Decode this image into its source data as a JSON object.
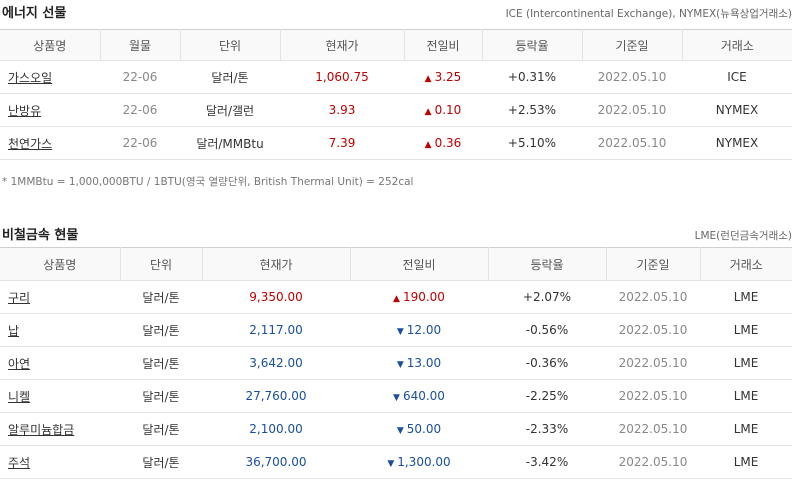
{
  "energy": {
    "title": "에너지 선물",
    "source": "ICE (Intercontinental Exchange), NYMEX(뉴욕상업거래소)",
    "headers": [
      "상품명",
      "월물",
      "단위",
      "현재가",
      "전일비",
      "등락율",
      "기준일",
      "거래소"
    ],
    "rows": [
      {
        "name": "가스오일",
        "month": "22-06",
        "unit": "달러/톤",
        "price": "1,060.75",
        "change": "3.25",
        "dir": "up",
        "arrow": "▲",
        "rate": "+0.31%",
        "date": "2022.05.10",
        "exchange": "ICE"
      },
      {
        "name": "난방유",
        "month": "22-06",
        "unit": "달러/갤런",
        "price": "3.93",
        "change": "0.10",
        "dir": "up",
        "arrow": "▲",
        "rate": "+2.53%",
        "date": "2022.05.10",
        "exchange": "NYMEX"
      },
      {
        "name": "천연가스",
        "month": "22-06",
        "unit": "달러/MMBtu",
        "price": "7.39",
        "change": "0.36",
        "dir": "up",
        "arrow": "▲",
        "rate": "+5.10%",
        "date": "2022.05.10",
        "exchange": "NYMEX"
      }
    ],
    "note": "* 1MMBtu = 1,000,000BTU / 1BTU(영국 열량단위, British Thermal Unit) = 252cal"
  },
  "metals": {
    "title": "비철금속 현물",
    "source": "LME(런던금속거래소)",
    "headers": [
      "상품명",
      "단위",
      "현재가",
      "전일비",
      "등락율",
      "기준일",
      "거래소"
    ],
    "rows": [
      {
        "name": "구리",
        "unit": "달러/톤",
        "price": "9,350.00",
        "change": "190.00",
        "dir": "up",
        "arrow": "▲",
        "rate": "+2.07%",
        "date": "2022.05.10",
        "exchange": "LME"
      },
      {
        "name": "납",
        "unit": "달러/톤",
        "price": "2,117.00",
        "change": "12.00",
        "dir": "down",
        "arrow": "▼",
        "rate": "-0.56%",
        "date": "2022.05.10",
        "exchange": "LME"
      },
      {
        "name": "아연",
        "unit": "달러/톤",
        "price": "3,642.00",
        "change": "13.00",
        "dir": "down",
        "arrow": "▼",
        "rate": "-0.36%",
        "date": "2022.05.10",
        "exchange": "LME"
      },
      {
        "name": "니켈",
        "unit": "달러/톤",
        "price": "27,760.00",
        "change": "640.00",
        "dir": "down",
        "arrow": "▼",
        "rate": "-2.25%",
        "date": "2022.05.10",
        "exchange": "LME"
      },
      {
        "name": "알루미늄합금",
        "unit": "달러/톤",
        "price": "2,100.00",
        "change": "50.00",
        "dir": "down",
        "arrow": "▼",
        "rate": "-2.33%",
        "date": "2022.05.10",
        "exchange": "LME"
      },
      {
        "name": "주석",
        "unit": "달러/톤",
        "price": "36,700.00",
        "change": "1,300.00",
        "dir": "down",
        "arrow": "▼",
        "rate": "-3.42%",
        "date": "2022.05.10",
        "exchange": "LME"
      }
    ]
  },
  "colors": {
    "up": "#c00000",
    "down": "#1a4fa0"
  }
}
